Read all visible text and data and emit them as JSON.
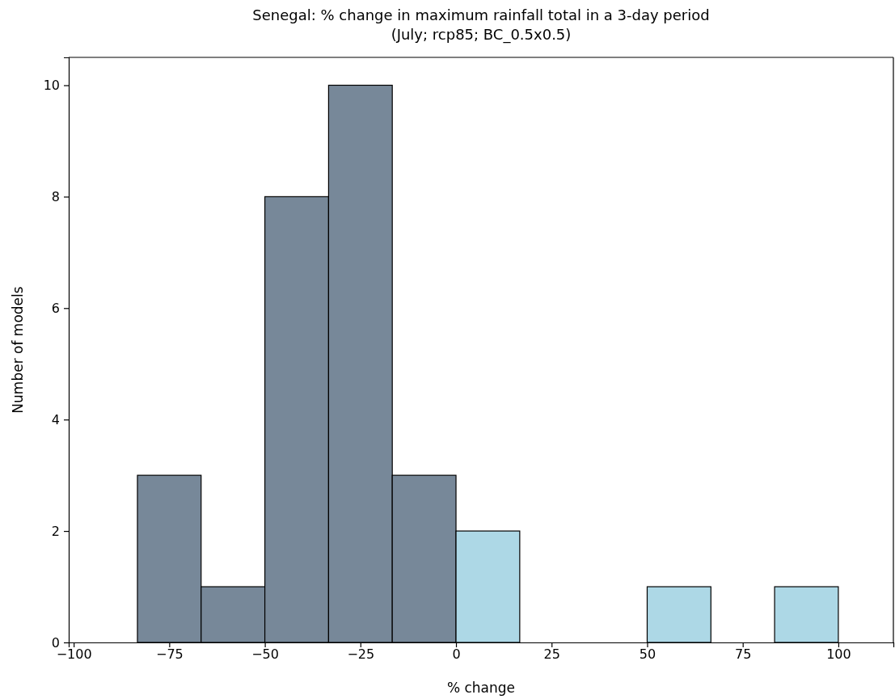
{
  "chart_data": {
    "type": "histogram",
    "title": "Senegal: % change in maximum rainfall total in a 3-day period",
    "subtitle": "(July; rcp85; BC_0.5x0.5)",
    "xlabel": "% change",
    "ylabel": "Number of models",
    "bins": [
      -83.33,
      -66.67,
      -50,
      -33.33,
      -16.67,
      0,
      16.67,
      33.33,
      50,
      66.67,
      83.33,
      100
    ],
    "values": [
      3,
      1,
      8,
      10,
      3,
      2,
      0,
      0,
      1,
      0,
      1
    ],
    "colors": [
      "#778899",
      "#778899",
      "#778899",
      "#778899",
      "#778899",
      "#add8e6",
      "#add8e6",
      "#add8e6",
      "#add8e6",
      "#add8e6",
      "#add8e6"
    ],
    "xlim": [
      -101.3,
      114.4
    ],
    "ylim": [
      0,
      10.5
    ],
    "xticks": [
      {
        "value": -100,
        "label": "−100"
      },
      {
        "value": -75,
        "label": "−75"
      },
      {
        "value": -50,
        "label": "−50"
      },
      {
        "value": -25,
        "label": "−25"
      },
      0,
      25,
      50,
      75,
      100
    ],
    "yticks": [
      0,
      2,
      4,
      6,
      8,
      10
    ],
    "grid": false
  }
}
